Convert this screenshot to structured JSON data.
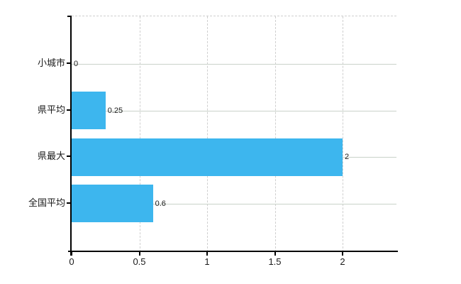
{
  "chart_data": {
    "type": "bar",
    "orientation": "horizontal",
    "title": "",
    "xlabel": "",
    "ylabel": "",
    "categories": [
      "小城市",
      "県平均",
      "県最大",
      "全国平均"
    ],
    "values": [
      0,
      0.25,
      2,
      0.6
    ],
    "value_labels": [
      "0",
      "0.25",
      "2",
      "0.6"
    ],
    "x_ticks": [
      0,
      0.5,
      1,
      1.5,
      2
    ],
    "x_tick_labels": [
      "0",
      "0.5",
      "1",
      "1.5",
      "2"
    ],
    "xlim": [
      0,
      2.4
    ],
    "grid": true,
    "legend": false,
    "colors": {
      "bar": "#3db6ee",
      "vgrid_dashed": "#cfcfcf",
      "hgrid_solid": "#c9d2c9",
      "axis": "#000000",
      "text": "#1a1a1a"
    }
  }
}
